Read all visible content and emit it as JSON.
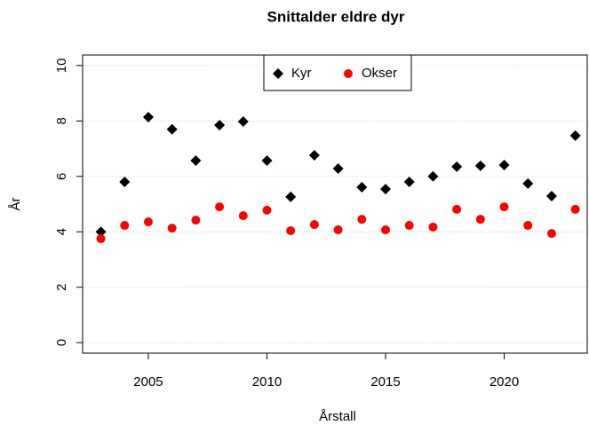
{
  "chart_data": {
    "type": "scatter",
    "title": "Snittalder eldre dyr",
    "x_label": "Årstall",
    "y_label": "År",
    "x": [
      2003,
      2004,
      2005,
      2006,
      2007,
      2008,
      2009,
      2010,
      2011,
      2012,
      2013,
      2014,
      2015,
      2016,
      2017,
      2018,
      2019,
      2020,
      2021,
      2022,
      2023
    ],
    "series": [
      {
        "name": "Kyr",
        "color": "#000000",
        "marker": "diamond",
        "values": [
          4.0,
          5.8,
          8.14,
          7.7,
          6.57,
          7.85,
          7.98,
          6.57,
          5.26,
          6.76,
          6.28,
          5.61,
          5.54,
          5.8,
          6.0,
          6.35,
          6.38,
          6.41,
          5.74,
          5.29,
          7.47
        ]
      },
      {
        "name": "Okser",
        "color": "#ff0000",
        "marker": "circle",
        "values": [
          3.75,
          4.23,
          4.36,
          4.13,
          4.42,
          4.9,
          4.58,
          4.78,
          4.04,
          4.26,
          4.07,
          4.45,
          4.07,
          4.23,
          4.17,
          4.81,
          4.45,
          4.9,
          4.23,
          3.94,
          4.81
        ]
      }
    ],
    "xlim": [
      2002.23,
      2023.5
    ],
    "xticks": [
      2005,
      2010,
      2015,
      2020
    ],
    "ylim": [
      -0.38,
      10.38
    ],
    "yticks": [
      0,
      2,
      4,
      6,
      8,
      10
    ],
    "grid": true,
    "legend": "top"
  }
}
